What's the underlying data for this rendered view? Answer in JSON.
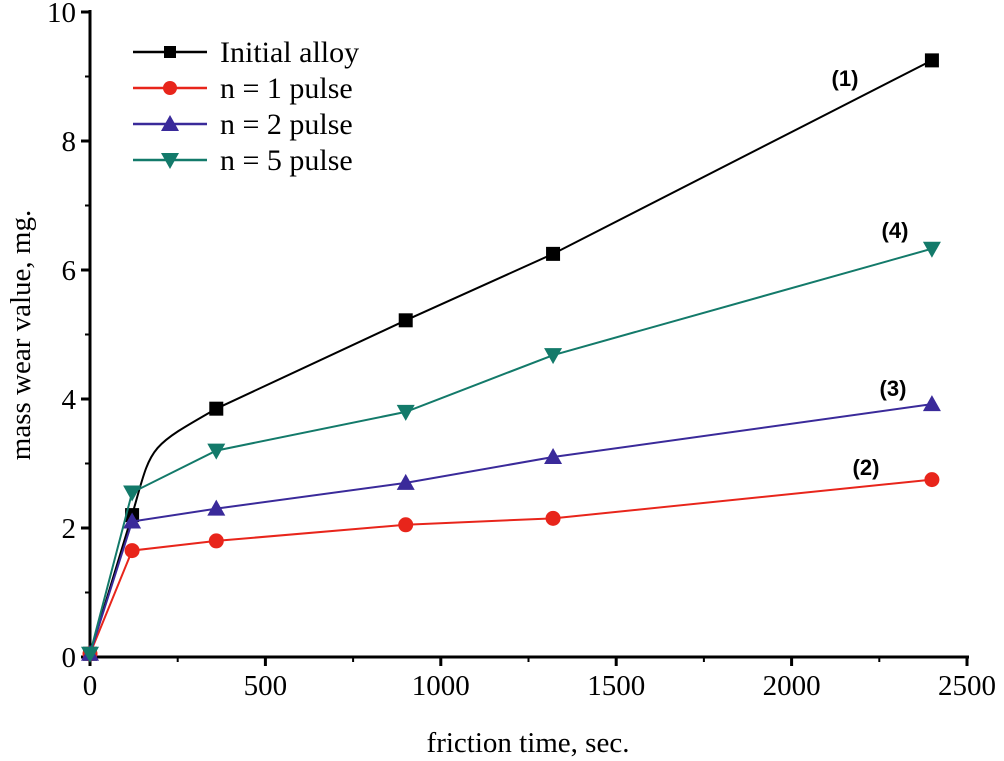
{
  "chart_data": {
    "type": "line",
    "title": "",
    "xlabel": "friction time, sec.",
    "ylabel": "mass wear value, mg.",
    "xlim": [
      0,
      2500
    ],
    "ylim": [
      0,
      10
    ],
    "xticks": [
      "0",
      "500",
      "1000",
      "1500",
      "2000",
      "2500"
    ],
    "yticks": [
      "0",
      "2",
      "4",
      "6",
      "8",
      "10"
    ],
    "grid": false,
    "legend_position": "top-left",
    "series": [
      {
        "name": "Initial alloy",
        "label": "(1)",
        "color": "#000000",
        "marker": "square",
        "x": [
          0,
          120,
          360,
          900,
          1320,
          2400
        ],
        "y": [
          0.05,
          2.2,
          3.85,
          5.22,
          6.25,
          9.25
        ]
      },
      {
        "name": "n = 1 pulse",
        "label": "(2)",
        "color": "#e8251b",
        "marker": "circle",
        "x": [
          0,
          120,
          360,
          900,
          1320,
          2400
        ],
        "y": [
          0.05,
          1.65,
          1.8,
          2.05,
          2.15,
          2.75
        ]
      },
      {
        "name": "n = 2 pulse",
        "label": "(3)",
        "color": "#3a2a9a",
        "marker": "triangle-up",
        "x": [
          0,
          120,
          360,
          900,
          1320,
          2400
        ],
        "y": [
          0.05,
          2.1,
          2.3,
          2.7,
          3.1,
          3.92
        ]
      },
      {
        "name": "n = 5 pulse",
        "label": "(4)",
        "color": "#137a6a",
        "marker": "triangle-down",
        "x": [
          0,
          120,
          360,
          900,
          1320,
          2400
        ],
        "y": [
          0.05,
          2.55,
          3.2,
          3.8,
          4.68,
          6.33
        ]
      }
    ]
  }
}
